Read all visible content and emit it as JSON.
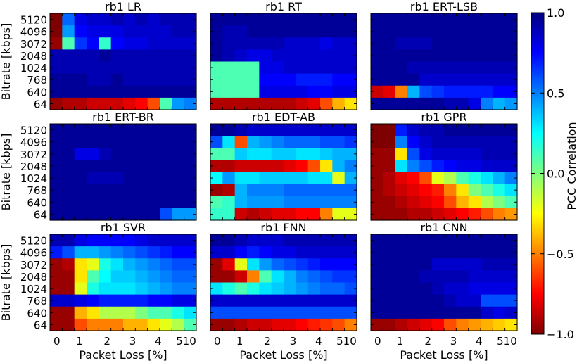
{
  "chart_data": {
    "type": "heatmap",
    "colorbar": {
      "label": "PCC Correlation",
      "ticks": [
        "1.0",
        "0.5",
        "0.0",
        "−0.5",
        "−1.0"
      ],
      "tick_values": [
        1.0,
        0.5,
        0.0,
        -0.5,
        -1.0
      ],
      "range": [
        -1.0,
        1.0
      ],
      "colormap": "jet",
      "colors": [
        "#00007f",
        "#0000ff",
        "#00ffff",
        "#7fff7f",
        "#ffff00",
        "#ff0000",
        "#7f0000"
      ]
    },
    "y_axis": {
      "label": "Bitrate [kbps]",
      "tick_labels": [
        "5120",
        "4096",
        "3072",
        "2048",
        "1024",
        "768",
        "640",
        "64"
      ]
    },
    "x_axis": {
      "label": "Packet Loss [%]",
      "tick_labels": [
        "0",
        "1",
        "2",
        "3",
        "4",
        "510"
      ]
    },
    "panels": [
      {
        "title": "rb1 LR",
        "rows": [
          [
            -1.0,
            0.55,
            0.8,
            0.85,
            0.85,
            0.9,
            0.85,
            0.9,
            0.85,
            0.9,
            0.9,
            0.9
          ],
          [
            -1.0,
            0.45,
            0.75,
            0.8,
            0.8,
            0.8,
            0.85,
            0.85,
            0.85,
            0.85,
            0.9,
            0.9
          ],
          [
            -0.95,
            0.1,
            0.65,
            0.75,
            0.15,
            0.75,
            0.8,
            0.8,
            0.85,
            0.85,
            0.85,
            0.85
          ],
          [
            0.9,
            0.9,
            0.9,
            0.9,
            0.95,
            0.9,
            0.9,
            0.9,
            0.9,
            0.9,
            0.9,
            0.9
          ],
          [
            0.9,
            0.9,
            0.9,
            0.9,
            0.9,
            0.9,
            0.9,
            0.9,
            0.9,
            0.9,
            0.9,
            0.9
          ],
          [
            0.95,
            0.95,
            0.95,
            0.9,
            0.9,
            0.95,
            0.9,
            0.9,
            0.9,
            0.9,
            0.9,
            0.9
          ],
          [
            0.95,
            0.95,
            0.95,
            0.95,
            0.95,
            0.95,
            0.95,
            0.95,
            0.95,
            0.95,
            0.95,
            0.95
          ],
          [
            -0.95,
            -0.9,
            -0.9,
            -0.85,
            -0.85,
            -0.85,
            -0.8,
            -0.75,
            -0.6,
            0.1,
            0.45,
            0.5
          ]
        ]
      },
      {
        "title": "rb1 RT",
        "rows": [
          [
            0.95,
            0.95,
            0.95,
            0.95,
            0.95,
            0.95,
            0.95,
            0.95,
            0.95,
            0.95,
            0.95,
            0.95
          ],
          [
            0.95,
            0.9,
            0.9,
            0.95,
            0.95,
            0.95,
            0.95,
            0.95,
            0.95,
            0.95,
            0.95,
            0.95
          ],
          [
            0.95,
            0.9,
            0.9,
            0.9,
            0.9,
            0.9,
            0.85,
            0.85,
            0.85,
            0.8,
            0.85,
            0.85
          ],
          [
            0.95,
            0.9,
            0.85,
            0.8,
            0.8,
            0.85,
            0.85,
            0.85,
            0.85,
            0.85,
            0.85,
            0.85
          ],
          [
            0.1,
            0.1,
            0.1,
            0.1,
            0.8,
            0.8,
            0.85,
            0.85,
            0.85,
            0.85,
            0.85,
            0.85
          ],
          [
            0.1,
            0.1,
            0.1,
            0.1,
            0.75,
            0.75,
            0.75,
            0.7,
            0.7,
            0.7,
            0.75,
            0.75
          ],
          [
            0.1,
            0.1,
            0.1,
            0.1,
            0.8,
            0.8,
            0.8,
            0.8,
            0.75,
            0.75,
            0.8,
            0.8
          ],
          [
            -0.9,
            -0.9,
            -0.9,
            -0.9,
            -0.9,
            -0.9,
            -0.9,
            -0.85,
            -0.8,
            -0.6,
            -0.4,
            -0.3
          ]
        ]
      },
      {
        "title": "rb1 ERT-LSB",
        "rows": [
          [
            0.95,
            0.95,
            0.95,
            0.95,
            0.95,
            0.95,
            0.95,
            0.95,
            0.95,
            0.95,
            0.95,
            0.95
          ],
          [
            0.95,
            0.95,
            0.95,
            0.95,
            0.95,
            0.95,
            0.95,
            0.95,
            0.95,
            0.95,
            0.95,
            0.95
          ],
          [
            0.95,
            0.95,
            0.9,
            0.9,
            0.9,
            0.95,
            0.95,
            0.95,
            0.95,
            0.95,
            0.95,
            0.95
          ],
          [
            0.95,
            0.95,
            0.95,
            0.95,
            0.95,
            0.95,
            0.95,
            0.95,
            0.95,
            0.95,
            0.95,
            0.95
          ],
          [
            0.95,
            0.95,
            0.95,
            0.9,
            0.9,
            0.9,
            0.9,
            0.9,
            0.9,
            0.9,
            0.9,
            0.9
          ],
          [
            0.95,
            0.95,
            0.95,
            0.95,
            0.85,
            0.85,
            0.85,
            0.85,
            0.85,
            0.85,
            0.85,
            0.85
          ],
          [
            -0.85,
            -0.8,
            -0.5,
            0.4,
            0.6,
            0.65,
            0.7,
            0.7,
            0.7,
            0.7,
            0.75,
            0.75
          ],
          [
            0.95,
            0.95,
            0.95,
            0.95,
            0.95,
            0.95,
            0.9,
            0.9,
            0.8,
            0.5,
            0.4,
            0.45
          ]
        ]
      },
      {
        "title": "rb1 ERT-BR",
        "rows": [
          [
            0.95,
            0.95,
            0.95,
            0.95,
            0.95,
            0.95,
            0.95,
            0.95,
            0.95,
            0.95,
            0.95,
            0.95
          ],
          [
            0.95,
            0.95,
            0.95,
            0.95,
            0.95,
            0.95,
            0.95,
            0.95,
            0.95,
            0.95,
            0.95,
            0.95
          ],
          [
            0.95,
            0.95,
            0.8,
            0.8,
            0.9,
            0.95,
            0.95,
            0.95,
            0.95,
            0.95,
            0.95,
            0.95
          ],
          [
            0.95,
            0.95,
            0.95,
            0.95,
            0.95,
            0.95,
            0.95,
            0.95,
            0.95,
            0.95,
            0.95,
            0.95
          ],
          [
            0.95,
            0.95,
            0.95,
            0.9,
            0.9,
            0.9,
            0.95,
            0.95,
            0.95,
            0.95,
            0.95,
            0.95
          ],
          [
            0.95,
            0.95,
            0.95,
            0.95,
            0.95,
            0.95,
            0.95,
            0.95,
            0.95,
            0.95,
            0.95,
            0.95
          ],
          [
            0.95,
            0.95,
            0.95,
            0.95,
            0.95,
            0.95,
            0.95,
            0.95,
            0.95,
            0.95,
            0.95,
            0.95
          ],
          [
            0.95,
            0.95,
            0.95,
            0.95,
            0.95,
            0.95,
            0.95,
            0.95,
            0.95,
            0.6,
            0.45,
            0.45
          ]
        ]
      },
      {
        "title": "rb1 EDT-AB",
        "rows": [
          [
            0.95,
            0.95,
            0.9,
            0.85,
            0.85,
            0.85,
            0.85,
            0.85,
            0.85,
            0.85,
            0.85,
            0.85
          ],
          [
            0.6,
            0.3,
            -0.6,
            0.4,
            0.45,
            0.5,
            0.55,
            0.55,
            0.55,
            0.6,
            0.6,
            0.65
          ],
          [
            0.1,
            0.1,
            0.35,
            0.3,
            0.3,
            0.35,
            0.35,
            0.3,
            0.3,
            0.35,
            0.4,
            0.4
          ],
          [
            -0.9,
            -0.9,
            -0.85,
            -0.85,
            -0.85,
            -0.85,
            -0.8,
            -0.75,
            -0.6,
            -0.3,
            0.4,
            0.5
          ],
          [
            0.25,
            0.45,
            0.3,
            0.3,
            0.35,
            0.35,
            0.35,
            0.35,
            0.3,
            0.3,
            -0.2,
            0.4
          ],
          [
            -0.95,
            -0.9,
            0.4,
            0.5,
            0.5,
            0.5,
            0.55,
            0.55,
            0.55,
            0.55,
            0.55,
            0.55
          ],
          [
            0.1,
            0.15,
            0.4,
            0.45,
            0.45,
            0.45,
            0.5,
            0.5,
            0.5,
            0.5,
            0.5,
            0.5
          ],
          [
            0.15,
            0.15,
            -0.85,
            -0.9,
            -0.85,
            -0.8,
            -0.8,
            -0.75,
            -0.75,
            -0.5,
            -0.2,
            -0.2
          ]
        ]
      },
      {
        "title": "rb1 GPR",
        "rows": [
          [
            -1.0,
            -1.0,
            0.7,
            0.85,
            0.9,
            0.9,
            0.95,
            0.95,
            0.95,
            0.95,
            0.95,
            0.95
          ],
          [
            -1.0,
            -1.0,
            0.5,
            0.75,
            0.85,
            0.9,
            0.9,
            0.9,
            0.9,
            0.9,
            0.9,
            0.9
          ],
          [
            -0.95,
            -0.95,
            -0.3,
            0.6,
            0.8,
            0.85,
            0.85,
            0.85,
            0.85,
            0.9,
            0.9,
            0.9
          ],
          [
            -0.95,
            -0.95,
            0.3,
            0.5,
            0.6,
            0.7,
            0.75,
            0.8,
            0.8,
            0.85,
            0.85,
            0.85
          ],
          [
            -0.95,
            -0.9,
            -0.8,
            -0.75,
            -0.6,
            -0.2,
            -0.1,
            0.1,
            0.2,
            0.3,
            0.4,
            0.5
          ],
          [
            -0.95,
            -0.9,
            -0.85,
            -0.8,
            -0.75,
            -0.7,
            -0.5,
            -0.3,
            0.0,
            0.1,
            0.2,
            0.3
          ],
          [
            -0.95,
            -0.95,
            -0.9,
            -0.85,
            -0.8,
            -0.75,
            -0.6,
            -0.4,
            -0.3,
            -0.1,
            0.0,
            0.1
          ],
          [
            -0.95,
            -0.95,
            -0.95,
            -0.9,
            -0.9,
            -0.85,
            -0.8,
            -0.75,
            -0.7,
            -0.6,
            -0.5,
            -0.45
          ]
        ]
      },
      {
        "title": "rb1 SVR",
        "rows": [
          [
            0.9,
            0.9,
            0.8,
            0.75,
            0.75,
            0.75,
            0.75,
            0.8,
            0.85,
            0.85,
            0.85,
            0.85
          ],
          [
            0.7,
            0.6,
            0.4,
            0.4,
            0.45,
            0.5,
            0.55,
            0.6,
            0.65,
            0.7,
            0.75,
            0.75
          ],
          [
            -0.95,
            -0.9,
            -0.3,
            -0.2,
            0.2,
            0.3,
            0.4,
            0.45,
            0.5,
            0.55,
            0.6,
            0.6
          ],
          [
            -0.95,
            -0.95,
            -0.3,
            0.1,
            0.25,
            0.35,
            0.35,
            0.4,
            0.45,
            0.5,
            0.55,
            0.55
          ],
          [
            -0.95,
            -0.95,
            -0.2,
            0.2,
            0.3,
            0.3,
            0.3,
            0.35,
            0.4,
            0.45,
            0.5,
            0.5
          ],
          [
            0.85,
            0.85,
            0.8,
            0.75,
            0.7,
            0.7,
            0.7,
            0.7,
            0.75,
            0.75,
            0.8,
            0.8
          ],
          [
            -0.95,
            -0.95,
            -0.4,
            -0.3,
            -0.1,
            -0.1,
            -0.1,
            0.0,
            0.1,
            0.1,
            0.2,
            0.3
          ],
          [
            -0.95,
            -0.95,
            -0.6,
            -0.5,
            -0.5,
            -0.5,
            -0.4,
            -0.4,
            -0.3,
            -0.2,
            -0.1,
            0.1
          ]
        ]
      },
      {
        "title": "rb1 FNN",
        "rows": [
          [
            0.95,
            0.95,
            0.9,
            0.85,
            0.85,
            0.85,
            0.9,
            0.9,
            0.9,
            0.9,
            0.9,
            0.9
          ],
          [
            0.85,
            0.85,
            0.75,
            0.7,
            0.75,
            0.8,
            0.8,
            0.85,
            0.85,
            0.85,
            0.85,
            0.85
          ],
          [
            -0.95,
            -0.8,
            -0.2,
            0.3,
            0.45,
            0.55,
            0.6,
            0.65,
            0.7,
            0.75,
            0.75,
            0.75
          ],
          [
            -0.95,
            -0.95,
            -0.85,
            -0.5,
            0.1,
            0.3,
            0.4,
            0.5,
            0.55,
            0.6,
            0.65,
            0.65
          ],
          [
            0.3,
            0.2,
            0.1,
            0.2,
            0.3,
            0.35,
            0.4,
            0.45,
            0.5,
            0.55,
            0.55,
            0.6
          ],
          [
            0.85,
            0.85,
            0.85,
            0.85,
            0.85,
            0.85,
            0.85,
            0.85,
            0.85,
            0.85,
            0.85,
            0.85
          ],
          [
            0.6,
            0.6,
            0.6,
            0.6,
            0.6,
            0.6,
            0.6,
            0.6,
            0.6,
            0.6,
            0.6,
            0.6
          ],
          [
            -0.95,
            -0.95,
            -0.9,
            -0.85,
            -0.85,
            -0.8,
            -0.8,
            -0.75,
            -0.7,
            -0.65,
            -0.6,
            -0.5
          ]
        ]
      },
      {
        "title": "rb1 CNN",
        "rows": [
          [
            0.95,
            0.95,
            0.95,
            0.95,
            0.95,
            0.95,
            0.95,
            0.95,
            0.95,
            0.95,
            0.95,
            0.95
          ],
          [
            0.95,
            0.95,
            0.95,
            0.95,
            0.95,
            0.95,
            0.95,
            0.95,
            0.95,
            0.95,
            0.95,
            0.95
          ],
          [
            0.95,
            0.95,
            0.95,
            0.95,
            0.95,
            0.85,
            0.85,
            0.85,
            0.85,
            0.9,
            0.9,
            0.9
          ],
          [
            0.95,
            0.95,
            0.95,
            0.95,
            0.9,
            0.9,
            0.9,
            0.9,
            0.85,
            0.85,
            0.85,
            0.85
          ],
          [
            0.95,
            0.95,
            0.95,
            0.95,
            0.95,
            0.9,
            0.85,
            0.85,
            0.8,
            0.8,
            0.8,
            0.8
          ],
          [
            0.95,
            0.95,
            0.95,
            0.95,
            0.95,
            0.95,
            0.9,
            0.85,
            0.85,
            0.6,
            0.6,
            0.6
          ],
          [
            0.95,
            0.95,
            0.95,
            0.95,
            0.95,
            0.95,
            0.95,
            0.95,
            0.95,
            0.85,
            0.8,
            0.85
          ],
          [
            -0.95,
            -0.95,
            -0.9,
            -0.85,
            -0.8,
            -0.75,
            -0.6,
            -0.5,
            -0.45,
            -0.4,
            -0.35,
            -0.3
          ]
        ]
      }
    ]
  }
}
